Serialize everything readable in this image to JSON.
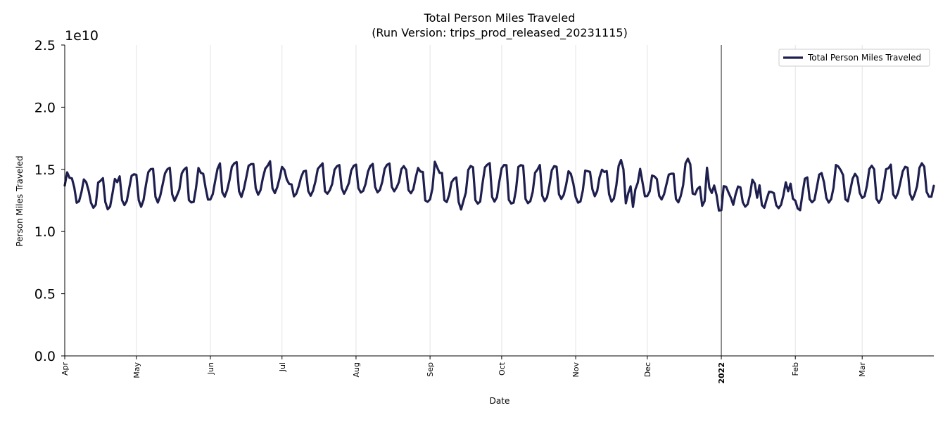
{
  "chart_data": {
    "type": "line",
    "title": "Total Person Miles Traveled",
    "subtitle": "(Run Version: trips_prod_released_20231115)",
    "xlabel": "Date",
    "ylabel": "Person Miles Traveled",
    "y_offset_label": "1e10",
    "ylim": [
      0,
      25000000000.0
    ],
    "yticks": [
      {
        "value": 0.0,
        "label": "0.0"
      },
      {
        "value": 5000000000.0,
        "label": "0.5"
      },
      {
        "value": 10000000000.0,
        "label": "1.0"
      },
      {
        "value": 15000000000.0,
        "label": "1.5"
      },
      {
        "value": 20000000000.0,
        "label": "2.0"
      },
      {
        "value": 25000000000.0,
        "label": "2.5"
      }
    ],
    "xlim": [
      "2021-04-01",
      "2022-03-31"
    ],
    "xticks": [
      {
        "date": "2021-04-01",
        "label": "Apr",
        "bold": false
      },
      {
        "date": "2021-05-01",
        "label": "May",
        "bold": false
      },
      {
        "date": "2021-06-01",
        "label": "Jun",
        "bold": false
      },
      {
        "date": "2021-07-01",
        "label": "Jul",
        "bold": false
      },
      {
        "date": "2021-08-01",
        "label": "Aug",
        "bold": false
      },
      {
        "date": "2021-09-01",
        "label": "Sep",
        "bold": false
      },
      {
        "date": "2021-10-01",
        "label": "Oct",
        "bold": false
      },
      {
        "date": "2021-11-01",
        "label": "Nov",
        "bold": false
      },
      {
        "date": "2021-12-01",
        "label": "Dec",
        "bold": false
      },
      {
        "date": "2022-01-01",
        "label": "2022",
        "bold": true
      },
      {
        "date": "2022-02-01",
        "label": "Feb",
        "bold": false
      },
      {
        "date": "2022-03-01",
        "label": "Mar",
        "bold": false
      }
    ],
    "year_marker": "2022-01-01",
    "grid": "vertical",
    "legend": "top-right",
    "series": [
      {
        "name": "Total Person Miles Traveled",
        "color": "#1f1f4f",
        "x": [
          "2021-04-01",
          "2021-04-02",
          "2021-04-03",
          "2021-04-04",
          "2021-04-05",
          "2021-04-06",
          "2021-04-07",
          "2021-04-08",
          "2021-04-09",
          "2021-04-10",
          "2021-04-11",
          "2021-04-12",
          "2021-04-13",
          "2021-04-14",
          "2021-04-15",
          "2021-04-16",
          "2021-04-17",
          "2021-04-18",
          "2021-04-19",
          "2021-04-20",
          "2021-04-21",
          "2021-04-22",
          "2021-04-23",
          "2021-04-24",
          "2021-04-25",
          "2021-04-26",
          "2021-04-27",
          "2021-04-28",
          "2021-04-29",
          "2021-04-30",
          "2021-05-01",
          "2021-05-02",
          "2021-05-03",
          "2021-05-04",
          "2021-05-05",
          "2021-05-06",
          "2021-05-07",
          "2021-05-08",
          "2021-05-09",
          "2021-05-10",
          "2021-05-11",
          "2021-05-12",
          "2021-05-13",
          "2021-05-14",
          "2021-05-15",
          "2021-05-16",
          "2021-05-17",
          "2021-05-18",
          "2021-05-19",
          "2021-05-20",
          "2021-05-21",
          "2021-05-22",
          "2021-05-23",
          "2021-05-24",
          "2021-05-25",
          "2021-05-26",
          "2021-05-27",
          "2021-05-28",
          "2021-05-29",
          "2021-05-30",
          "2021-05-31",
          "2021-06-01",
          "2021-06-02",
          "2021-06-03",
          "2021-06-04",
          "2021-06-05",
          "2021-06-06",
          "2021-06-07",
          "2021-06-08",
          "2021-06-09",
          "2021-06-10",
          "2021-06-11",
          "2021-06-12",
          "2021-06-13",
          "2021-06-14",
          "2021-06-15",
          "2021-06-16",
          "2021-06-17",
          "2021-06-18",
          "2021-06-19",
          "2021-06-20",
          "2021-06-21",
          "2021-06-22",
          "2021-06-23",
          "2021-06-24",
          "2021-06-25",
          "2021-06-26",
          "2021-06-27",
          "2021-06-28",
          "2021-06-29",
          "2021-06-30",
          "2021-07-01",
          "2021-07-02",
          "2021-07-03",
          "2021-07-04",
          "2021-07-05",
          "2021-07-06",
          "2021-07-07",
          "2021-07-08",
          "2021-07-09",
          "2021-07-10",
          "2021-07-11",
          "2021-07-12",
          "2021-07-13",
          "2021-07-14",
          "2021-07-15",
          "2021-07-16",
          "2021-07-17",
          "2021-07-18",
          "2021-07-19",
          "2021-07-20",
          "2021-07-21",
          "2021-07-22",
          "2021-07-23",
          "2021-07-24",
          "2021-07-25",
          "2021-07-26",
          "2021-07-27",
          "2021-07-28",
          "2021-07-29",
          "2021-07-30",
          "2021-07-31",
          "2021-08-01",
          "2021-08-02",
          "2021-08-03",
          "2021-08-04",
          "2021-08-05",
          "2021-08-06",
          "2021-08-07",
          "2021-08-08",
          "2021-08-09",
          "2021-08-10",
          "2021-08-11",
          "2021-08-12",
          "2021-08-13",
          "2021-08-14",
          "2021-08-15",
          "2021-08-16",
          "2021-08-17",
          "2021-08-18",
          "2021-08-19",
          "2021-08-20",
          "2021-08-21",
          "2021-08-22",
          "2021-08-23",
          "2021-08-24",
          "2021-08-25",
          "2021-08-26",
          "2021-08-27",
          "2021-08-28",
          "2021-08-29",
          "2021-08-30",
          "2021-08-31",
          "2021-09-01",
          "2021-09-02",
          "2021-09-03",
          "2021-09-04",
          "2021-09-05",
          "2021-09-06",
          "2021-09-07",
          "2021-09-08",
          "2021-09-09",
          "2021-09-10",
          "2021-09-11",
          "2021-09-12",
          "2021-09-13",
          "2021-09-14",
          "2021-09-15",
          "2021-09-16",
          "2021-09-17",
          "2021-09-18",
          "2021-09-19",
          "2021-09-20",
          "2021-09-21",
          "2021-09-22",
          "2021-09-23",
          "2021-09-24",
          "2021-09-25",
          "2021-09-26",
          "2021-09-27",
          "2021-09-28",
          "2021-09-29",
          "2021-09-30",
          "2021-10-01",
          "2021-10-02",
          "2021-10-03",
          "2021-10-04",
          "2021-10-05",
          "2021-10-06",
          "2021-10-07",
          "2021-10-08",
          "2021-10-09",
          "2021-10-10",
          "2021-10-11",
          "2021-10-12",
          "2021-10-13",
          "2021-10-14",
          "2021-10-15",
          "2021-10-16",
          "2021-10-17",
          "2021-10-18",
          "2021-10-19",
          "2021-10-20",
          "2021-10-21",
          "2021-10-22",
          "2021-10-23",
          "2021-10-24",
          "2021-10-25",
          "2021-10-26",
          "2021-10-27",
          "2021-10-28",
          "2021-10-29",
          "2021-10-30",
          "2021-10-31",
          "2021-11-01",
          "2021-11-02",
          "2021-11-03",
          "2021-11-04",
          "2021-11-05",
          "2021-11-06",
          "2021-11-07",
          "2021-11-08",
          "2021-11-09",
          "2021-11-10",
          "2021-11-11",
          "2021-11-12",
          "2021-11-13",
          "2021-11-14",
          "2021-11-15",
          "2021-11-16",
          "2021-11-17",
          "2021-11-18",
          "2021-11-19",
          "2021-11-20",
          "2021-11-21",
          "2021-11-22",
          "2021-11-23",
          "2021-11-24",
          "2021-11-25",
          "2021-11-26",
          "2021-11-27",
          "2021-11-28",
          "2021-11-29",
          "2021-11-30",
          "2021-12-01",
          "2021-12-02",
          "2021-12-03",
          "2021-12-04",
          "2021-12-05",
          "2021-12-06",
          "2021-12-07",
          "2021-12-08",
          "2021-12-09",
          "2021-12-10",
          "2021-12-11",
          "2021-12-12",
          "2021-12-13",
          "2021-12-14",
          "2021-12-15",
          "2021-12-16",
          "2021-12-17",
          "2021-12-18",
          "2021-12-19",
          "2021-12-20",
          "2021-12-21",
          "2021-12-22",
          "2021-12-23",
          "2021-12-24",
          "2021-12-25",
          "2021-12-26",
          "2021-12-27",
          "2021-12-28",
          "2021-12-29",
          "2021-12-30",
          "2021-12-31",
          "2022-01-01",
          "2022-01-02",
          "2022-01-03",
          "2022-01-04",
          "2022-01-05",
          "2022-01-06",
          "2022-01-07",
          "2022-01-08",
          "2022-01-09",
          "2022-01-10",
          "2022-01-11",
          "2022-01-12",
          "2022-01-13",
          "2022-01-14",
          "2022-01-15",
          "2022-01-16",
          "2022-01-17",
          "2022-01-18",
          "2022-01-19",
          "2022-01-20",
          "2022-01-21",
          "2022-01-22",
          "2022-01-23",
          "2022-01-24",
          "2022-01-25",
          "2022-01-26",
          "2022-01-27",
          "2022-01-28",
          "2022-01-29",
          "2022-01-30",
          "2022-01-31",
          "2022-02-01",
          "2022-02-02",
          "2022-02-03",
          "2022-02-04",
          "2022-02-05",
          "2022-02-06",
          "2022-02-07",
          "2022-02-08",
          "2022-02-09",
          "2022-02-10",
          "2022-02-11",
          "2022-02-12",
          "2022-02-13",
          "2022-02-14",
          "2022-02-15",
          "2022-02-16",
          "2022-02-17",
          "2022-02-18",
          "2022-02-19",
          "2022-02-20",
          "2022-02-21",
          "2022-02-22",
          "2022-02-23",
          "2022-02-24",
          "2022-02-25",
          "2022-02-26",
          "2022-02-27",
          "2022-02-28",
          "2022-03-01",
          "2022-03-02",
          "2022-03-03",
          "2022-03-04",
          "2022-03-05",
          "2022-03-06",
          "2022-03-07",
          "2022-03-08",
          "2022-03-09",
          "2022-03-10",
          "2022-03-11",
          "2022-03-12",
          "2022-03-13",
          "2022-03-14",
          "2022-03-15",
          "2022-03-16",
          "2022-03-17",
          "2022-03-18",
          "2022-03-19",
          "2022-03-20",
          "2022-03-21",
          "2022-03-22",
          "2022-03-23",
          "2022-03-24",
          "2022-03-25",
          "2022-03-26",
          "2022-03-27",
          "2022-03-28",
          "2022-03-29",
          "2022-03-30",
          "2022-03-31"
        ],
        "y": [
          13700000000,
          14760000000,
          14320000000,
          14280000000,
          13540000000,
          12310000000,
          12440000000,
          13170000000,
          14190000000,
          13970000000,
          13290000000,
          12310000000,
          11910000000,
          12160000000,
          13940000000,
          14080000000,
          14290000000,
          12370000000,
          11790000000,
          12010000000,
          13070000000,
          14230000000,
          13970000000,
          14440000000,
          12520000000,
          12130000000,
          12470000000,
          13490000000,
          14480000000,
          14610000000,
          14560000000,
          12520000000,
          11990000000,
          12530000000,
          13740000000,
          14780000000,
          15020000000,
          15040000000,
          12790000000,
          12330000000,
          12870000000,
          13780000000,
          14680000000,
          15010000000,
          15130000000,
          12990000000,
          12470000000,
          12900000000,
          13380000000,
          14670000000,
          14990000000,
          15150000000,
          12530000000,
          12340000000,
          12380000000,
          13520000000,
          15110000000,
          14720000000,
          14640000000,
          13510000000,
          12570000000,
          12580000000,
          13010000000,
          14060000000,
          15050000000,
          15480000000,
          13160000000,
          12800000000,
          13320000000,
          14140000000,
          15210000000,
          15480000000,
          15590000000,
          13240000000,
          12780000000,
          13410000000,
          14320000000,
          15280000000,
          15420000000,
          15430000000,
          13470000000,
          12960000000,
          13330000000,
          14320000000,
          15060000000,
          15300000000,
          15650000000,
          13480000000,
          13090000000,
          13560000000,
          14300000000,
          15200000000,
          14960000000,
          14180000000,
          13830000000,
          13790000000,
          12830000000,
          13050000000,
          13630000000,
          14370000000,
          14830000000,
          14890000000,
          13250000000,
          12880000000,
          13290000000,
          14030000000,
          15040000000,
          15270000000,
          15480000000,
          13240000000,
          13040000000,
          13320000000,
          13820000000,
          14970000000,
          15250000000,
          15350000000,
          13500000000,
          13040000000,
          13430000000,
          13890000000,
          14910000000,
          15280000000,
          15380000000,
          13490000000,
          13140000000,
          13270000000,
          13830000000,
          14810000000,
          15270000000,
          15440000000,
          13590000000,
          13150000000,
          13350000000,
          14000000000,
          15050000000,
          15370000000,
          15470000000,
          13590000000,
          13240000000,
          13550000000,
          14000000000,
          15020000000,
          15260000000,
          14970000000,
          13330000000,
          13080000000,
          13410000000,
          14350000000,
          15110000000,
          14820000000,
          14790000000,
          12500000000,
          12390000000,
          12590000000,
          13460000000,
          15610000000,
          15150000000,
          14720000000,
          14710000000,
          12520000000,
          12370000000,
          12940000000,
          13960000000,
          14230000000,
          14350000000,
          12370000000,
          11770000000,
          12460000000,
          13130000000,
          14950000000,
          15270000000,
          15170000000,
          12530000000,
          12240000000,
          12410000000,
          13890000000,
          15160000000,
          15380000000,
          15500000000,
          12780000000,
          12410000000,
          12750000000,
          14000000000,
          15090000000,
          15350000000,
          15340000000,
          12550000000,
          12250000000,
          12320000000,
          13350000000,
          15200000000,
          15340000000,
          15290000000,
          12620000000,
          12280000000,
          12440000000,
          13190000000,
          14730000000,
          14980000000,
          15350000000,
          12890000000,
          12450000000,
          12760000000,
          13730000000,
          14930000000,
          15260000000,
          15210000000,
          13000000000,
          12620000000,
          12960000000,
          13760000000,
          14850000000,
          14630000000,
          13870000000,
          12770000000,
          12320000000,
          12420000000,
          13310000000,
          14900000000,
          14850000000,
          14800000000,
          13400000000,
          12840000000,
          13250000000,
          14370000000,
          14970000000,
          14790000000,
          14860000000,
          13000000000,
          12410000000,
          12650000000,
          13670000000,
          15280000000,
          15750000000,
          15010000000,
          12270000000,
          13080000000,
          13640000000,
          11980000000,
          13390000000,
          13920000000,
          15040000000,
          13950000000,
          12840000000,
          12860000000,
          13230000000,
          14500000000,
          14430000000,
          14220000000,
          12870000000,
          12580000000,
          12990000000,
          13780000000,
          14580000000,
          14650000000,
          14650000000,
          12620000000,
          12350000000,
          12860000000,
          13720000000,
          15480000000,
          15860000000,
          15410000000,
          13050000000,
          12990000000,
          13430000000,
          13600000000,
          12070000000,
          12450000000,
          15130000000,
          13520000000,
          13100000000,
          13700000000,
          12940000000,
          11690000000,
          11710000000,
          13650000000,
          13600000000,
          13140000000,
          12720000000,
          12150000000,
          13000000000,
          13620000000,
          13550000000,
          12350000000,
          12000000000,
          12190000000,
          12940000000,
          14170000000,
          13860000000,
          12720000000,
          13720000000,
          12130000000,
          11910000000,
          12600000000,
          13200000000,
          13180000000,
          13090000000,
          12120000000,
          11880000000,
          12140000000,
          12920000000,
          13960000000,
          13240000000,
          13850000000,
          12640000000,
          12480000000,
          11850000000,
          11710000000,
          13040000000,
          14250000000,
          14350000000,
          12610000000,
          12350000000,
          12540000000,
          13540000000,
          14580000000,
          14700000000,
          13960000000,
          12700000000,
          12330000000,
          12610000000,
          13530000000,
          15350000000,
          15230000000,
          14940000000,
          14540000000,
          12590000000,
          12430000000,
          13310000000,
          14250000000,
          14640000000,
          14350000000,
          13100000000,
          12700000000,
          12840000000,
          13700000000,
          15030000000,
          15290000000,
          15010000000,
          12630000000,
          12310000000,
          12640000000,
          13720000000,
          15010000000,
          15090000000,
          15380000000,
          12990000000,
          12690000000,
          13110000000,
          13960000000,
          14850000000,
          15210000000,
          15130000000,
          13040000000,
          12560000000,
          13010000000,
          13660000000,
          15130000000,
          15490000000,
          15210000000,
          13190000000,
          12800000000,
          12800000000,
          13680000000
        ]
      }
    ]
  }
}
